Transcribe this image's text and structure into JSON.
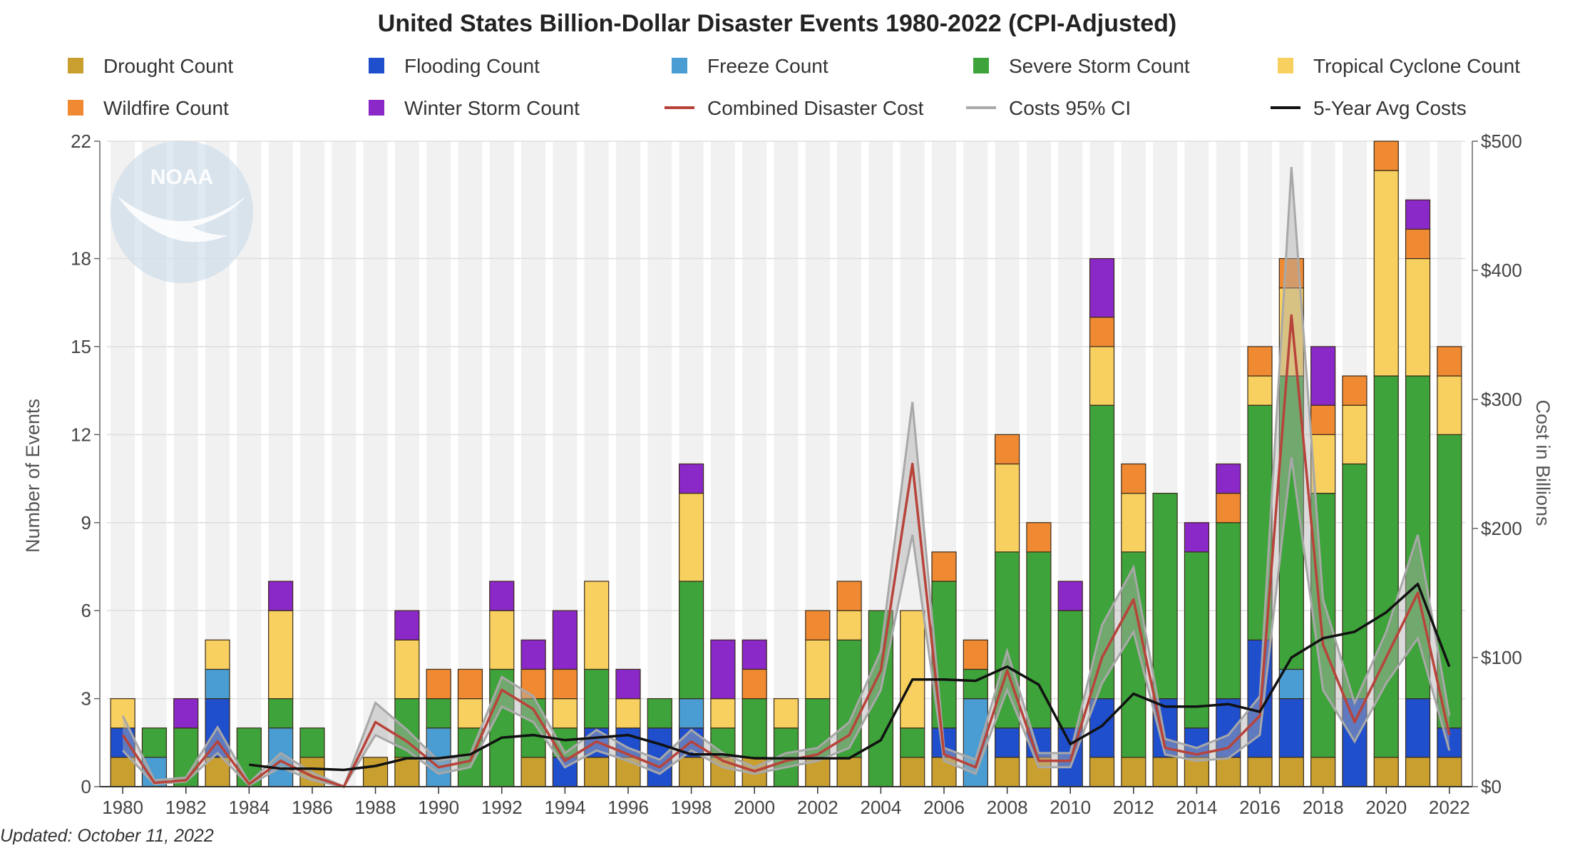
{
  "chart_data": {
    "type": "bar",
    "stacked": true,
    "title": "United States Billion-Dollar Disaster Events 1980-2022 (CPI-Adjusted)",
    "ylabel_left": "Number of Events",
    "ylabel_right": "Cost in Billions",
    "ylim_left": [
      0,
      22
    ],
    "ylim_right": [
      0,
      500
    ],
    "yticks_left": [
      "0",
      "3",
      "6",
      "9",
      "12",
      "15",
      "18",
      "22"
    ],
    "yticks_right": [
      "$0",
      "$100",
      "$200",
      "$300",
      "$400",
      "$500"
    ],
    "xticks": [
      "1980",
      "1982",
      "1984",
      "1986",
      "1988",
      "1990",
      "1992",
      "1994",
      "1996",
      "1998",
      "2000",
      "2002",
      "2004",
      "2006",
      "2008",
      "2010",
      "2012",
      "2014",
      "2016",
      "2018",
      "2020",
      "2022"
    ],
    "footnote": "Updated: October 11, 2022",
    "watermark": "NOAA",
    "legend_position": "top",
    "categories": [
      1980,
      1981,
      1982,
      1983,
      1984,
      1985,
      1986,
      1987,
      1988,
      1989,
      1990,
      1991,
      1992,
      1993,
      1994,
      1995,
      1996,
      1997,
      1998,
      1999,
      2000,
      2001,
      2002,
      2003,
      2004,
      2005,
      2006,
      2007,
      2008,
      2009,
      2010,
      2011,
      2012,
      2013,
      2014,
      2015,
      2016,
      2017,
      2018,
      2019,
      2020,
      2021,
      2022
    ],
    "series": [
      {
        "name": "Drought Count",
        "color": "#c9a030",
        "values": [
          1,
          0,
          0,
          1,
          0,
          0,
          1,
          0,
          1,
          1,
          0,
          0,
          0,
          1,
          0,
          1,
          1,
          0,
          1,
          1,
          1,
          0,
          1,
          1,
          0,
          1,
          1,
          0,
          1,
          1,
          0,
          1,
          1,
          1,
          1,
          1,
          1,
          1,
          1,
          0,
          1,
          1,
          1
        ]
      },
      {
        "name": "Flooding Count",
        "color": "#1f4fcc",
        "values": [
          1,
          0,
          0,
          2,
          0,
          0,
          0,
          0,
          0,
          0,
          0,
          0,
          0,
          0,
          1,
          1,
          1,
          2,
          1,
          0,
          0,
          0,
          0,
          0,
          0,
          0,
          1,
          0,
          1,
          1,
          2,
          2,
          0,
          2,
          1,
          2,
          4,
          2,
          0,
          3,
          0,
          2,
          1
        ]
      },
      {
        "name": "Freeze Count",
        "color": "#4a9dd2",
        "values": [
          0,
          1,
          0,
          1,
          0,
          2,
          0,
          0,
          0,
          0,
          2,
          0,
          0,
          0,
          0,
          0,
          0,
          0,
          1,
          0,
          0,
          0,
          0,
          0,
          0,
          0,
          0,
          3,
          0,
          0,
          0,
          0,
          0,
          0,
          0,
          0,
          0,
          1,
          0,
          0,
          0,
          0,
          0
        ]
      },
      {
        "name": "Severe Storm Count",
        "color": "#3ea33a",
        "values": [
          0,
          1,
          2,
          0,
          2,
          1,
          1,
          0,
          0,
          2,
          1,
          2,
          4,
          2,
          1,
          2,
          0,
          1,
          4,
          1,
          2,
          2,
          2,
          4,
          6,
          1,
          5,
          1,
          6,
          6,
          4,
          10,
          7,
          7,
          6,
          6,
          8,
          10,
          9,
          8,
          13,
          11,
          10
        ]
      },
      {
        "name": "Tropical Cyclone Count",
        "color": "#f8d060",
        "values": [
          1,
          0,
          0,
          1,
          0,
          3,
          0,
          0,
          0,
          2,
          0,
          1,
          2,
          0,
          1,
          3,
          1,
          0,
          3,
          1,
          0,
          1,
          2,
          1,
          0,
          4,
          0,
          0,
          3,
          0,
          0,
          2,
          2,
          0,
          0,
          0,
          1,
          3,
          2,
          2,
          7,
          4,
          2
        ]
      },
      {
        "name": "Wildfire Count",
        "color": "#f08a32",
        "values": [
          0,
          0,
          0,
          0,
          0,
          0,
          0,
          0,
          0,
          0,
          1,
          1,
          0,
          1,
          1,
          0,
          0,
          0,
          0,
          0,
          1,
          0,
          1,
          1,
          0,
          0,
          1,
          1,
          1,
          1,
          0,
          1,
          1,
          0,
          0,
          1,
          1,
          1,
          1,
          1,
          1,
          1,
          1
        ]
      },
      {
        "name": "Winter Storm Count",
        "color": "#8a28c8",
        "values": [
          0,
          0,
          1,
          0,
          0,
          1,
          0,
          0,
          0,
          1,
          0,
          0,
          1,
          1,
          2,
          0,
          1,
          0,
          1,
          2,
          1,
          0,
          0,
          0,
          0,
          0,
          0,
          0,
          0,
          0,
          1,
          2,
          0,
          0,
          1,
          1,
          0,
          0,
          2,
          0,
          0,
          1,
          0
        ]
      }
    ],
    "lines": [
      {
        "name": "Combined Disaster Cost",
        "color": "#b8433a",
        "values": [
          40,
          3,
          5,
          35,
          2,
          20,
          8,
          0,
          50,
          35,
          15,
          20,
          75,
          60,
          20,
          35,
          25,
          15,
          35,
          20,
          12,
          20,
          25,
          40,
          90,
          250,
          25,
          15,
          90,
          20,
          20,
          100,
          145,
          30,
          25,
          30,
          55,
          365,
          110,
          50,
          100,
          150,
          40
        ]
      },
      {
        "name": "5-Year Avg Costs",
        "color": "#111111",
        "values": [
          null,
          null,
          null,
          null,
          17,
          14,
          14,
          13,
          16,
          22,
          22,
          25,
          38,
          40,
          36,
          38,
          40,
          33,
          25,
          25,
          22,
          22,
          22,
          22,
          36,
          83,
          83,
          82,
          93,
          79,
          33,
          47,
          72,
          62,
          62,
          64,
          58,
          100,
          115,
          120,
          135,
          157,
          93
        ]
      }
    ],
    "ci_band": {
      "name": "Costs 95% CI",
      "color": "#aaaaaa",
      "low": [
        28,
        2,
        4,
        26,
        1,
        15,
        5,
        0,
        40,
        28,
        10,
        15,
        62,
        50,
        15,
        28,
        20,
        10,
        28,
        15,
        10,
        15,
        20,
        30,
        75,
        195,
        20,
        10,
        75,
        15,
        15,
        80,
        120,
        25,
        20,
        22,
        40,
        255,
        75,
        35,
        80,
        115,
        28
      ],
      "high": [
        55,
        5,
        7,
        46,
        3,
        26,
        11,
        0,
        65,
        44,
        20,
        25,
        85,
        70,
        26,
        44,
        30,
        21,
        44,
        26,
        15,
        26,
        30,
        50,
        105,
        298,
        30,
        21,
        105,
        26,
        26,
        125,
        170,
        37,
        30,
        40,
        70,
        480,
        145,
        65,
        120,
        195,
        55
      ]
    }
  },
  "legend": {
    "items": [
      {
        "label": "Drought Count",
        "kind": "square",
        "color": "#c9a030"
      },
      {
        "label": "Flooding Count",
        "kind": "square",
        "color": "#1f4fcc"
      },
      {
        "label": "Freeze Count",
        "kind": "square",
        "color": "#4a9dd2"
      },
      {
        "label": "Severe Storm Count",
        "kind": "square",
        "color": "#3ea33a"
      },
      {
        "label": "Tropical Cyclone Count",
        "kind": "square",
        "color": "#f8d060"
      },
      {
        "label": "Wildfire Count",
        "kind": "square",
        "color": "#f08a32"
      },
      {
        "label": "Winter Storm Count",
        "kind": "square",
        "color": "#8a28c8"
      },
      {
        "label": "Combined Disaster Cost",
        "kind": "line",
        "color": "#b8433a"
      },
      {
        "label": "Costs 95% CI",
        "kind": "line",
        "color": "#aaaaaa"
      },
      {
        "label": "5-Year Avg Costs",
        "kind": "line",
        "color": "#111111"
      }
    ]
  }
}
